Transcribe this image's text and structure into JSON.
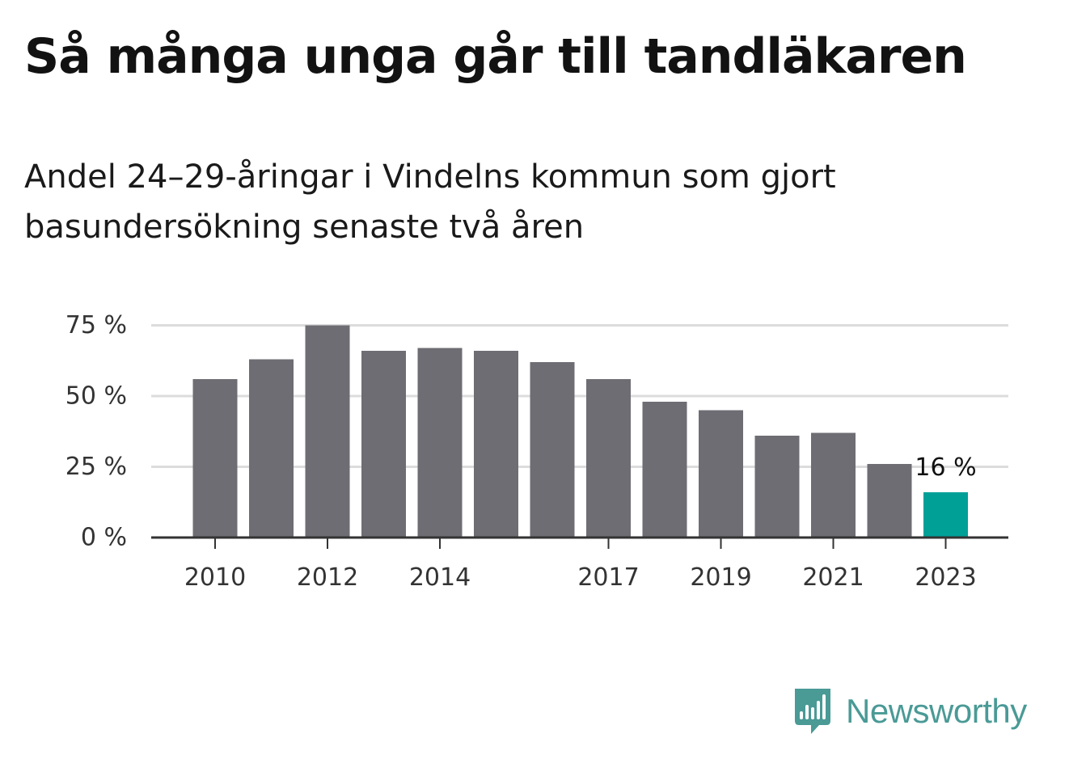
{
  "header": {
    "title": "Så många unga går till tandläkaren",
    "subtitle": "Andel 24–29-åringar i Vindelns kommun som gjort basundersökning senaste två åren"
  },
  "chart_data": {
    "type": "bar",
    "categories": [
      "2010",
      "2011",
      "2012",
      "2013",
      "2014",
      "2015",
      "2016",
      "2017",
      "2018",
      "2019",
      "2020",
      "2021",
      "2022",
      "2023"
    ],
    "values": [
      56,
      63,
      75,
      66,
      67,
      66,
      62,
      56,
      48,
      45,
      36,
      37,
      26,
      16
    ],
    "x_tick_labels": [
      "2010",
      "",
      "2012",
      "",
      "2014",
      "",
      "",
      "2017",
      "",
      "2019",
      "",
      "2021",
      "",
      "2023"
    ],
    "y_ticks": [
      0,
      25,
      50,
      75
    ],
    "y_tick_labels": [
      "0 %",
      "25 %",
      "50 %",
      "75 %"
    ],
    "ylim": [
      0,
      75
    ],
    "grid": true,
    "legend": "none",
    "highlight_category": "2023",
    "highlight_label": "16 %",
    "colors": {
      "bar": "#6e6d73",
      "highlight": "#00a097",
      "grid": "#dcdcdc",
      "axis": "#333333",
      "tick_text": "#333333"
    }
  },
  "brand": {
    "name": "Newsworthy",
    "icon": "newsworthy-logo-icon",
    "color": "#4a9a96"
  }
}
